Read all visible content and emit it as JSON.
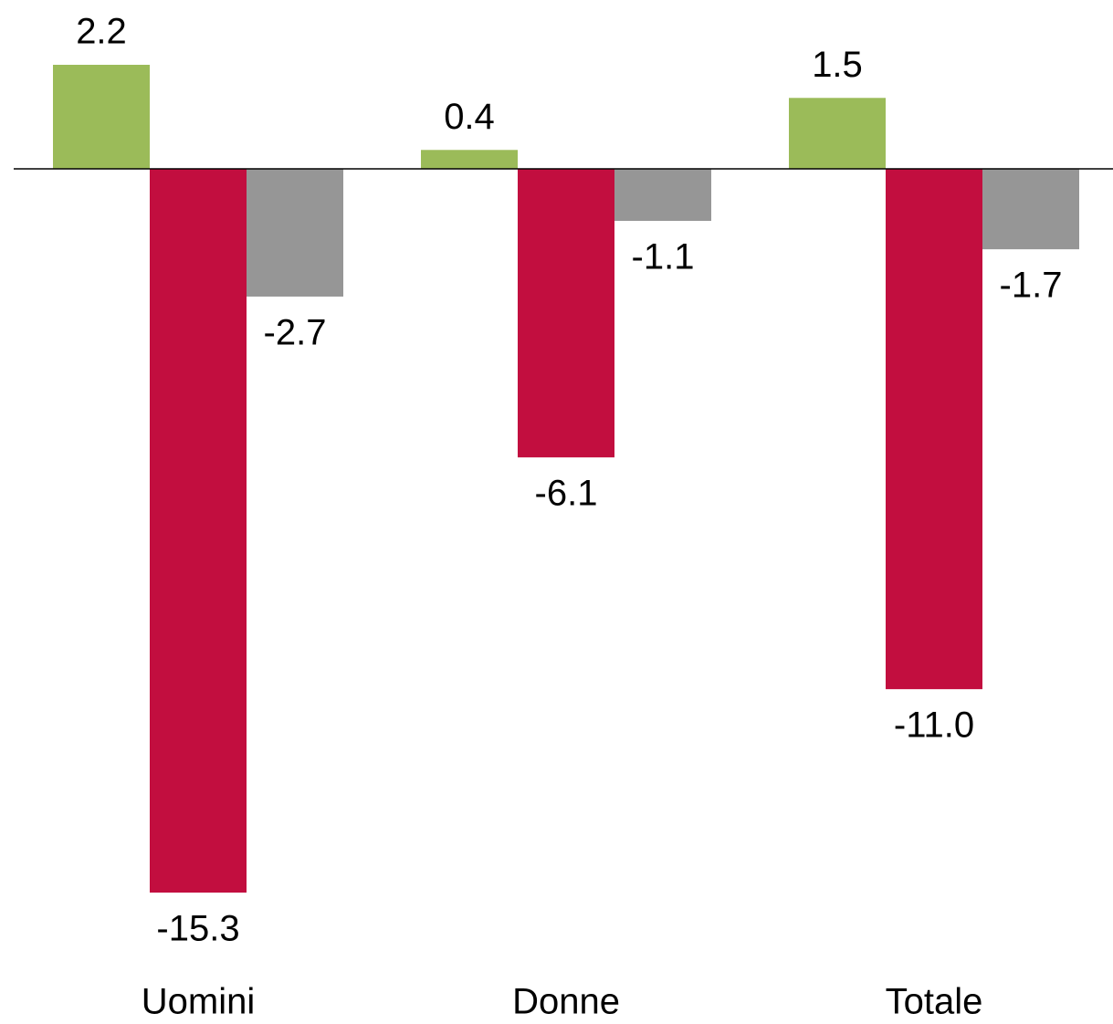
{
  "chart_data": {
    "type": "bar",
    "categories": [
      "Uomini",
      "Donne",
      "Totale"
    ],
    "series": [
      {
        "color": "#9bbb59",
        "values": [
          2.2,
          0.4,
          1.5
        ],
        "value_labels": [
          "2.2",
          "0.4",
          "1.5"
        ]
      },
      {
        "color": "#c20e3f",
        "values": [
          -15.3,
          -6.1,
          -11.0
        ],
        "value_labels": [
          "-15.3",
          "-6.1",
          "-11.0"
        ]
      },
      {
        "color": "#969696",
        "values": [
          -2.7,
          -1.1,
          -1.7
        ],
        "value_labels": [
          "-2.7",
          "-1.1",
          "-1.7"
        ]
      }
    ]
  }
}
